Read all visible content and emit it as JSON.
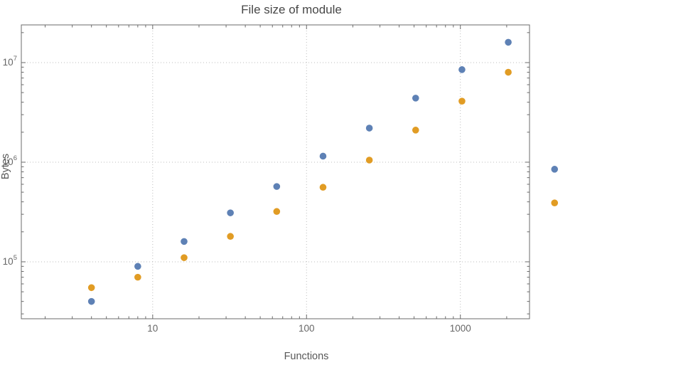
{
  "chart_data": {
    "type": "scatter",
    "title": "File size of module",
    "xlabel": "Functions",
    "ylabel": "Bytes",
    "x_scale": "log",
    "y_scale": "log",
    "grid": "dotted-major",
    "legend": "none",
    "xlim": [
      1.4,
      2815
    ],
    "ylim": [
      26800,
      23900000
    ],
    "x": [
      4,
      8,
      16,
      32,
      64,
      128,
      256,
      512,
      1024,
      2048,
      4096
    ],
    "series": [
      {
        "name": "blue",
        "color": "#5e81b5",
        "values": [
          40000,
          90000,
          160000,
          310000,
          570000,
          1150000,
          2200000,
          4400000,
          8500000,
          16000000,
          850000
        ]
      },
      {
        "name": "orange",
        "color": "#e19c24",
        "values": [
          55000,
          70000,
          110000,
          180000,
          320000,
          560000,
          1050000,
          2100000,
          4100000,
          8000000,
          390000
        ]
      }
    ],
    "x_ticks": [
      {
        "value": 10,
        "label": "10"
      },
      {
        "value": 100,
        "label": "100"
      },
      {
        "value": 1000,
        "label": "1000"
      }
    ],
    "y_ticks": [
      {
        "value": 100000,
        "label": "10^5"
      },
      {
        "value": 1000000,
        "label": "10^6"
      },
      {
        "value": 10000000,
        "label": "10^7"
      }
    ]
  }
}
